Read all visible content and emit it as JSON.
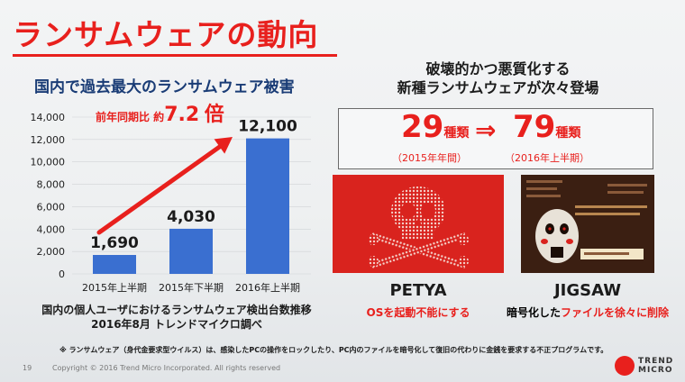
{
  "slide": {
    "title": "ランサムウェアの動向",
    "page_number": "19",
    "copyright": "Copyright © 2016 Trend Micro Incorporated. All rights reserved",
    "logo": {
      "line1": "TREND",
      "line2": "MICRO"
    },
    "footnote": "※ ランサムウェア（身代金要求型ウイルス）は、感染したPCの操作をロックしたり、PC内のファイルを暗号化して復旧の代わりに金銭を要求する不正プログラムです。"
  },
  "left": {
    "heading": "国内で過去最大のランサムウェア被害",
    "growth": {
      "prefix": "前年同期比 約",
      "value": "7.2",
      "suffix": "倍"
    },
    "note_line1": "国内の個人ユーザにおけるランサムウェア検出台数推移",
    "note_line2": "2016年8月 トレンドマイクロ調べ"
  },
  "chart_data": {
    "type": "bar",
    "categories": [
      "2015年上半期",
      "2015年下半期",
      "2016年上半期"
    ],
    "values": [
      1690,
      4030,
      12100
    ],
    "data_labels": [
      "1,690",
      "4,030",
      "12,100"
    ],
    "ytick_values": [
      0,
      2000,
      4000,
      6000,
      8000,
      10000,
      12000,
      14000
    ],
    "ytick_labels": [
      "0",
      "2,000",
      "4,000",
      "6,000",
      "8,000",
      "10,000",
      "12,000",
      "14,000"
    ],
    "ylim": [
      0,
      14000
    ],
    "title": "",
    "xlabel": "",
    "ylabel": "",
    "bar_color": "#3a6fd0",
    "arrow_color": "#e8201d",
    "annotation": "前年同期比 約7.2倍"
  },
  "right": {
    "heading_line1": "破壊的かつ悪質化する",
    "heading_line2": "新種ランサムウェアが次々登場",
    "count_before": {
      "number": "29",
      "unit": "種類",
      "period": "（2015年年間）"
    },
    "count_after": {
      "number": "79",
      "unit": "種類",
      "period": "（2016年上半期）"
    },
    "arrow_glyph": "⇒",
    "petya": {
      "name": "PETYA",
      "desc": "OSを起動不能にする"
    },
    "jigsaw": {
      "name": "JIGSAW",
      "desc_prefix": "暗号化した",
      "desc_highlight": "ファイルを徐々に削除"
    }
  },
  "colors": {
    "accent": "#e8201d",
    "heading_blue": "#1a3c76",
    "bar_blue": "#3a6fd0"
  }
}
